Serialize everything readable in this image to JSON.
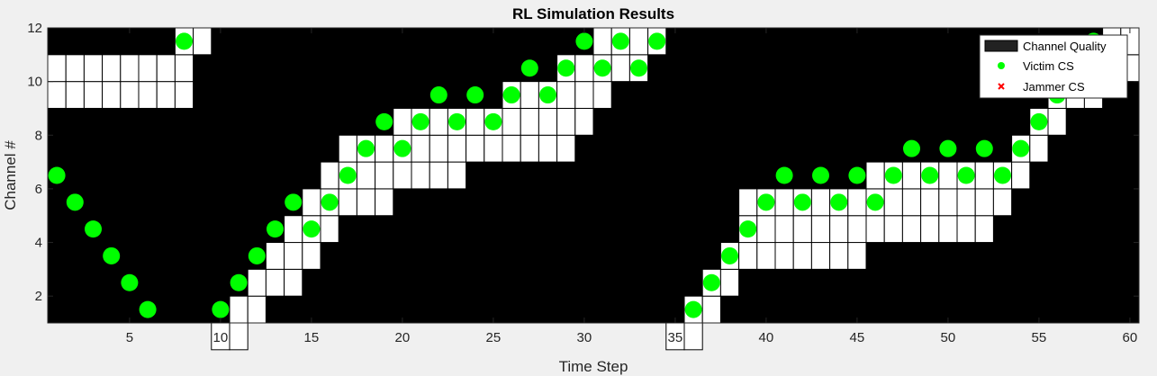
{
  "chart_data": {
    "type": "heatmap",
    "title": "RL Simulation Results",
    "xlabel": "Time Step",
    "ylabel": "Channel #",
    "xlim": [
      0.5,
      60.5
    ],
    "ylim": [
      1,
      12
    ],
    "xticks": [
      5,
      10,
      15,
      20,
      25,
      30,
      35,
      40,
      45,
      50,
      55,
      60
    ],
    "yticks": [
      2,
      4,
      6,
      8,
      10,
      12
    ],
    "background_color": "#000000",
    "cell_color": "#ffffff",
    "victim_color": "#00ff00",
    "jammer_color": "#ff0000",
    "legend": {
      "position": "top-right",
      "entries": [
        {
          "label": "Channel Quality",
          "marker": "patch"
        },
        {
          "label": "Victim CS",
          "marker": "dot"
        },
        {
          "label": "Jammer CS",
          "marker": "x"
        }
      ]
    },
    "channel_quality": [
      {
        "t": 1,
        "channels": [
          10,
          11
        ]
      },
      {
        "t": 2,
        "channels": [
          10,
          11
        ]
      },
      {
        "t": 3,
        "channels": [
          10,
          11
        ]
      },
      {
        "t": 4,
        "channels": [
          10,
          11
        ]
      },
      {
        "t": 5,
        "channels": [
          10,
          11
        ]
      },
      {
        "t": 6,
        "channels": [
          10,
          11
        ]
      },
      {
        "t": 7,
        "channels": [
          10,
          11
        ]
      },
      {
        "t": 8,
        "channels": [
          10,
          11,
          12
        ]
      },
      {
        "t": 9,
        "channels": [
          12
        ]
      },
      {
        "t": 10,
        "channels": [
          1
        ]
      },
      {
        "t": 11,
        "channels": [
          1,
          2
        ]
      },
      {
        "t": 12,
        "channels": [
          2,
          3
        ]
      },
      {
        "t": 13,
        "channels": [
          3,
          4
        ]
      },
      {
        "t": 14,
        "channels": [
          3,
          4,
          5
        ]
      },
      {
        "t": 15,
        "channels": [
          4,
          5,
          6
        ]
      },
      {
        "t": 16,
        "channels": [
          5,
          6,
          7
        ]
      },
      {
        "t": 17,
        "channels": [
          6,
          7,
          8
        ]
      },
      {
        "t": 18,
        "channels": [
          6,
          7,
          8
        ]
      },
      {
        "t": 19,
        "channels": [
          6,
          7,
          8
        ]
      },
      {
        "t": 20,
        "channels": [
          7,
          8,
          9
        ]
      },
      {
        "t": 21,
        "channels": [
          7,
          8,
          9
        ]
      },
      {
        "t": 22,
        "channels": [
          7,
          8,
          9
        ]
      },
      {
        "t": 23,
        "channels": [
          7,
          8,
          9
        ]
      },
      {
        "t": 24,
        "channels": [
          8,
          9
        ]
      },
      {
        "t": 25,
        "channels": [
          8,
          9
        ]
      },
      {
        "t": 26,
        "channels": [
          8,
          9,
          10
        ]
      },
      {
        "t": 27,
        "channels": [
          8,
          9,
          10
        ]
      },
      {
        "t": 28,
        "channels": [
          8,
          9,
          10
        ]
      },
      {
        "t": 29,
        "channels": [
          8,
          9,
          10,
          11
        ]
      },
      {
        "t": 30,
        "channels": [
          9,
          10,
          11
        ]
      },
      {
        "t": 31,
        "channels": [
          10,
          11,
          12
        ]
      },
      {
        "t": 32,
        "channels": [
          11,
          12
        ]
      },
      {
        "t": 33,
        "channels": [
          11,
          12
        ]
      },
      {
        "t": 34,
        "channels": [
          12
        ]
      },
      {
        "t": 35,
        "channels": [
          1
        ]
      },
      {
        "t": 36,
        "channels": [
          1,
          2
        ]
      },
      {
        "t": 37,
        "channels": [
          2,
          3
        ]
      },
      {
        "t": 38,
        "channels": [
          3,
          4
        ]
      },
      {
        "t": 39,
        "channels": [
          4,
          5,
          6
        ]
      },
      {
        "t": 40,
        "channels": [
          4,
          5,
          6
        ]
      },
      {
        "t": 41,
        "channels": [
          4,
          5,
          6
        ]
      },
      {
        "t": 42,
        "channels": [
          4,
          5,
          6
        ]
      },
      {
        "t": 43,
        "channels": [
          4,
          5,
          6
        ]
      },
      {
        "t": 44,
        "channels": [
          4,
          5,
          6
        ]
      },
      {
        "t": 45,
        "channels": [
          4,
          5,
          6
        ]
      },
      {
        "t": 46,
        "channels": [
          5,
          6,
          7
        ]
      },
      {
        "t": 47,
        "channels": [
          5,
          6,
          7
        ]
      },
      {
        "t": 48,
        "channels": [
          5,
          6,
          7
        ]
      },
      {
        "t": 49,
        "channels": [
          5,
          6,
          7
        ]
      },
      {
        "t": 50,
        "channels": [
          5,
          6,
          7
        ]
      },
      {
        "t": 51,
        "channels": [
          5,
          6,
          7
        ]
      },
      {
        "t": 52,
        "channels": [
          5,
          6,
          7
        ]
      },
      {
        "t": 53,
        "channels": [
          6,
          7
        ]
      },
      {
        "t": 54,
        "channels": [
          7,
          8
        ]
      },
      {
        "t": 55,
        "channels": [
          8,
          9
        ]
      },
      {
        "t": 56,
        "channels": [
          9,
          10
        ]
      },
      {
        "t": 57,
        "channels": [
          10,
          11
        ]
      },
      {
        "t": 58,
        "channels": [
          10,
          11
        ]
      },
      {
        "t": 59,
        "channels": [
          11,
          12
        ]
      },
      {
        "t": 60,
        "channels": [
          11,
          12
        ]
      }
    ],
    "victim_cs": {
      "x": [
        1,
        2,
        3,
        4,
        5,
        6,
        8,
        10,
        11,
        12,
        13,
        14,
        15,
        16,
        17,
        18,
        19,
        20,
        21,
        22,
        23,
        24,
        25,
        26,
        27,
        28,
        29,
        30,
        31,
        32,
        33,
        34,
        36,
        37,
        38,
        39,
        40,
        41,
        42,
        43,
        44,
        45,
        46,
        47,
        48,
        49,
        50,
        51,
        52,
        53,
        54,
        55,
        56,
        57,
        58,
        59
      ],
      "y": [
        6.5,
        5.5,
        4.5,
        3.5,
        2.5,
        1.5,
        11.5,
        1.5,
        2.5,
        3.5,
        4.5,
        5.5,
        4.5,
        5.5,
        6.5,
        7.5,
        8.5,
        7.5,
        8.5,
        9.5,
        8.5,
        9.5,
        8.5,
        9.5,
        10.5,
        9.5,
        10.5,
        11.5,
        10.5,
        11.5,
        10.5,
        11.5,
        1.5,
        2.5,
        3.5,
        4.5,
        5.5,
        6.5,
        5.5,
        6.5,
        5.5,
        6.5,
        5.5,
        6.5,
        7.5,
        6.5,
        7.5,
        6.5,
        7.5,
        6.5,
        7.5,
        8.5,
        9.5,
        10.5,
        11.5,
        10.5
      ]
    },
    "jammer_cs": {
      "x": [],
      "y": []
    }
  }
}
